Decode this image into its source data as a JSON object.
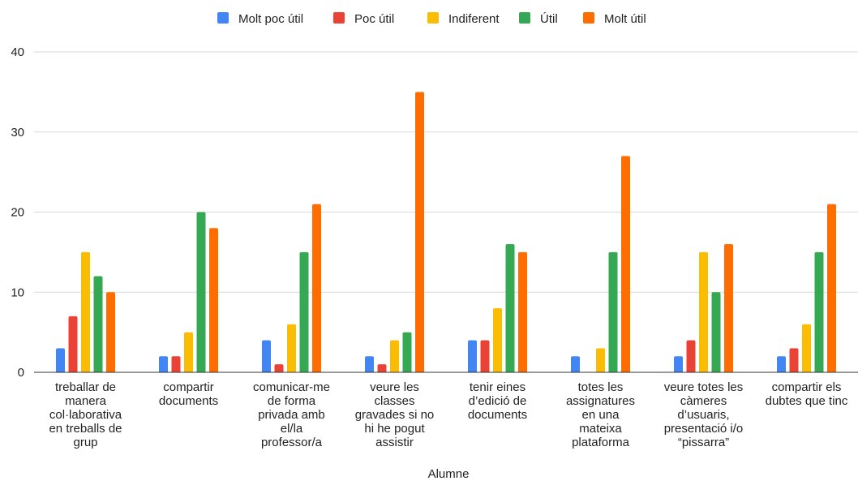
{
  "chart_data": {
    "type": "bar",
    "title": "",
    "xlabel": "Alumne",
    "ylabel": "",
    "ylim": [
      0,
      40
    ],
    "yticks": [
      0,
      10,
      20,
      30,
      40
    ],
    "grid": true,
    "legend_position": "top",
    "categories": [
      [
        "treballar de",
        "manera",
        "col·laborativa",
        "en treballs de",
        "grup"
      ],
      [
        "compartir",
        "documents"
      ],
      [
        "comunicar-me",
        "de forma",
        "privada amb",
        "el/la",
        "professor/a"
      ],
      [
        "veure les",
        "classes",
        "gravades si no",
        "hi he pogut",
        "assistir"
      ],
      [
        "tenir eines",
        "d’edició de",
        "documents"
      ],
      [
        "totes les",
        "assignatures",
        "en una",
        "mateixa",
        "plataforma"
      ],
      [
        "veure totes les",
        "càmeres",
        "d’usuaris,",
        "presentació i/o",
        "“pissarra”"
      ],
      [
        "compartir els",
        "dubtes que tinc"
      ]
    ],
    "series": [
      {
        "name": "Molt poc útil",
        "color": "#4285f4",
        "values": [
          3,
          2,
          4,
          2,
          4,
          2,
          2,
          2
        ]
      },
      {
        "name": "Poc útil",
        "color": "#ea4335",
        "values": [
          7,
          2,
          1,
          1,
          4,
          0,
          4,
          3
        ]
      },
      {
        "name": "Indiferent",
        "color": "#fbbc04",
        "values": [
          15,
          5,
          6,
          4,
          8,
          3,
          15,
          6
        ]
      },
      {
        "name": "Útil",
        "color": "#34a853",
        "values": [
          12,
          20,
          15,
          5,
          16,
          15,
          10,
          15
        ]
      },
      {
        "name": "Molt útil",
        "color": "#ff6d01",
        "values": [
          10,
          18,
          21,
          35,
          15,
          27,
          16,
          21
        ]
      }
    ]
  }
}
